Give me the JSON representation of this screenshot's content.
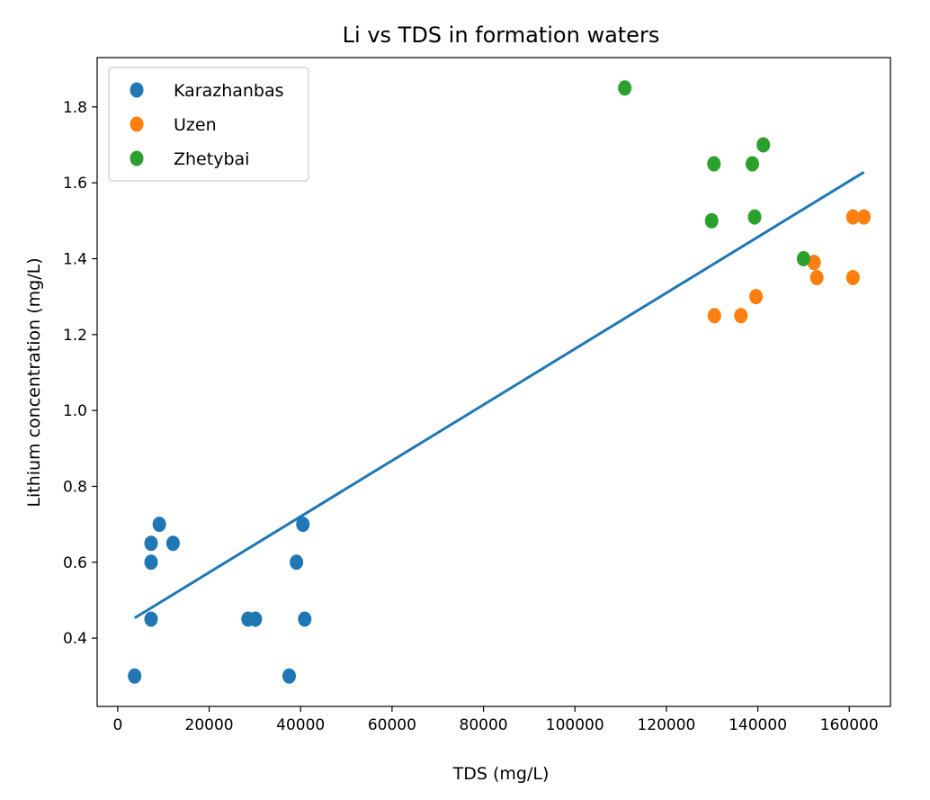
{
  "chart_data": {
    "type": "scatter",
    "title": "Li vs TDS in formation waters",
    "xlabel": "TDS (mg/L)",
    "ylabel": "Lithium concentration (mg/L)",
    "xlim": [
      -4500,
      169000
    ],
    "ylim": [
      0.22,
      1.93
    ],
    "xticks": [
      0,
      20000,
      40000,
      60000,
      80000,
      100000,
      120000,
      140000,
      160000
    ],
    "yticks": [
      0.4,
      0.6,
      0.8,
      1.0,
      1.2,
      1.4,
      1.6,
      1.8
    ],
    "legend_position": "top-left",
    "grid": false,
    "series": [
      {
        "name": "Karazhanbas",
        "color": "#1f77b4",
        "points": [
          [
            3700,
            0.3
          ],
          [
            7300,
            0.45
          ],
          [
            7300,
            0.6
          ],
          [
            7300,
            0.65
          ],
          [
            9100,
            0.7
          ],
          [
            12100,
            0.65
          ],
          [
            28500,
            0.45
          ],
          [
            30100,
            0.45
          ],
          [
            37500,
            0.3
          ],
          [
            39100,
            0.6
          ],
          [
            40500,
            0.7
          ],
          [
            40900,
            0.45
          ]
        ]
      },
      {
        "name": "Uzen",
        "color": "#ff7f0e",
        "points": [
          [
            130500,
            1.25
          ],
          [
            136300,
            1.25
          ],
          [
            139600,
            1.3
          ],
          [
            152300,
            1.39
          ],
          [
            152900,
            1.35
          ],
          [
            160800,
            1.35
          ],
          [
            160800,
            1.51
          ],
          [
            163200,
            1.51
          ]
        ]
      },
      {
        "name": "Zhetybai",
        "color": "#2ca02c",
        "points": [
          [
            110900,
            1.85
          ],
          [
            129900,
            1.5
          ],
          [
            130400,
            1.65
          ],
          [
            138800,
            1.65
          ],
          [
            139300,
            1.51
          ],
          [
            141200,
            1.7
          ],
          [
            150000,
            1.4
          ]
        ]
      }
    ],
    "trend_line": {
      "color": "#1f77b4",
      "start": [
        3700,
        0.453
      ],
      "end": [
        163200,
        1.628
      ]
    }
  }
}
